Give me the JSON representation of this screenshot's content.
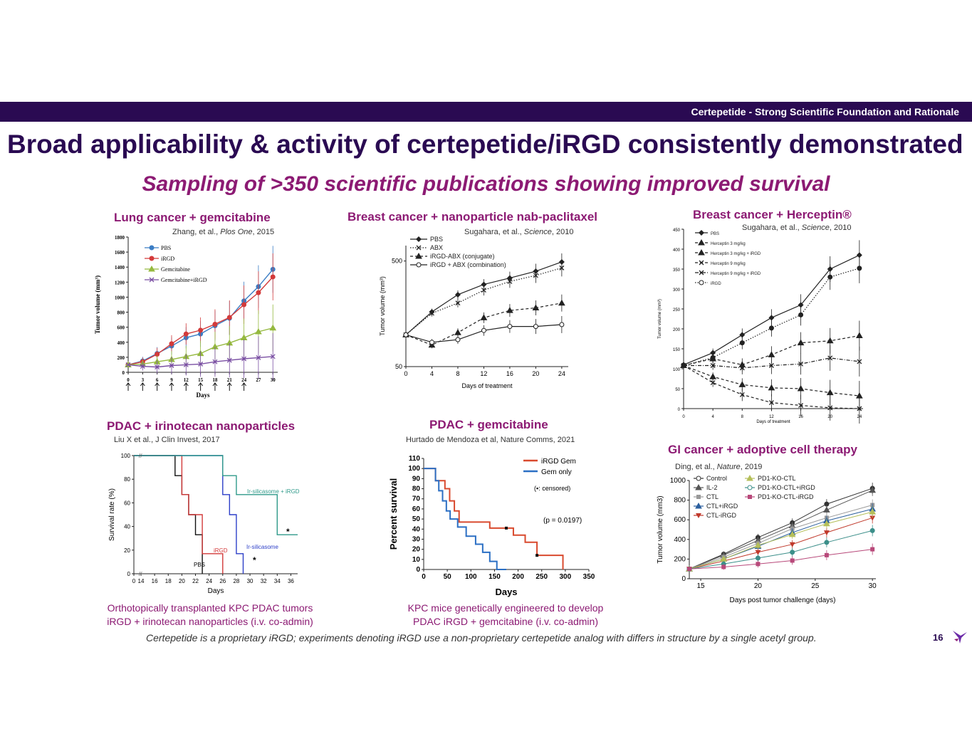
{
  "header": {
    "section": "Certepetide - Strong Scientific Foundation and Rationale"
  },
  "title": "Broad applicability & activity of certepetide/iRGD consistently demonstrated",
  "subtitle": "Sampling of >350 scientific publications showing improved survival",
  "panels": {
    "lung": {
      "title": "Lung cancer + gemcitabine",
      "cite_author": "Zhang, et al., ",
      "cite_journal": "Plos One",
      "cite_year": ", 2015"
    },
    "breast_nab": {
      "title": "Breast cancer + nanoparticle nab-paclitaxel",
      "cite_author": "Sugahara, et al., ",
      "cite_journal": "Science",
      "cite_year": ", 2010"
    },
    "breast_her": {
      "title": "Breast cancer + Herceptin®",
      "cite_author": "Sugahara, et al., ",
      "cite_journal": "Science",
      "cite_year": ", 2010"
    },
    "pdac_iri": {
      "title": "PDAC + irinotecan nanoparticles",
      "cite": "Liu X et al., J Clin Invest, 2017",
      "caption_line1": "Orthotopically transplanted KPC PDAC tumors",
      "caption_line2": "iRGD + irinotecan nanoparticles (i.v. co-admin)"
    },
    "pdac_gem": {
      "title": "PDAC + gemcitabine",
      "cite": "Hurtado de Mendoza et al, Nature Comms, 2021",
      "caption_line1": "KPC mice genetically engineered to develop",
      "caption_line2": "PDAC iRGD + gemcitabine (i.v. co-admin)"
    },
    "gi": {
      "title": "GI cancer + adoptive cell therapy",
      "cite_author": "Ding, et al., ",
      "cite_journal": "Nature",
      "cite_year": ", 2019"
    }
  },
  "footnote": "Certepetide is a proprietary iRGD; experiments denoting iRGD use a non-proprietary certepetide analog with differs in structure by a single acetyl group.",
  "page_number": "16",
  "colors": {
    "brand_dark": "#2a0a52",
    "brand_magenta": "#8c1a73"
  },
  "chart_data": [
    {
      "id": "lung",
      "type": "line",
      "xlabel": "Days",
      "ylabel": "Tumor volume (mm³)",
      "x": [
        0,
        3,
        6,
        9,
        12,
        15,
        18,
        21,
        24,
        27,
        30
      ],
      "xticks": [
        "0",
        "3",
        "6",
        "9",
        "12",
        "15",
        "18",
        "21",
        "24",
        "27",
        "30"
      ],
      "yticks": [
        0,
        200,
        400,
        600,
        800,
        1000,
        1200,
        1400,
        1600,
        1800
      ],
      "ylim": [
        0,
        1800
      ],
      "dosing_days": [
        0,
        3,
        6,
        9,
        12,
        15,
        18,
        21,
        24
      ],
      "series": [
        {
          "name": "PBS",
          "color": "#3b7dc4",
          "marker": "circle",
          "values": [
            100,
            150,
            250,
            350,
            460,
            510,
            620,
            720,
            950,
            1140,
            1370
          ]
        },
        {
          "name": "iRGD",
          "color": "#d33a3a",
          "marker": "circle",
          "values": [
            100,
            140,
            240,
            380,
            510,
            560,
            640,
            730,
            900,
            1060,
            1270
          ]
        },
        {
          "name": "Gemcitabine",
          "color": "#95b93f",
          "marker": "triangle",
          "values": [
            100,
            110,
            140,
            170,
            210,
            250,
            340,
            390,
            460,
            540,
            590
          ]
        },
        {
          "name": "Gemcitabine+iRGD",
          "color": "#7a4fa3",
          "marker": "x",
          "values": [
            100,
            80,
            70,
            90,
            100,
            110,
            140,
            160,
            180,
            195,
            210
          ]
        }
      ]
    },
    {
      "id": "breast_nab",
      "type": "line",
      "scale": "log",
      "xlabel": "Days of treatment",
      "ylabel": "Tumor volume (mm³)",
      "x": [
        0,
        4,
        8,
        12,
        16,
        20,
        24
      ],
      "xticks": [
        "0",
        "4",
        "8",
        "12",
        "16",
        "20",
        "24"
      ],
      "yticks": [
        50,
        500
      ],
      "ylim": [
        50,
        700
      ],
      "series": [
        {
          "name": "PBS",
          "style": "solid",
          "marker": "diamond",
          "values": [
            100,
            165,
            240,
            300,
            345,
            400,
            490
          ]
        },
        {
          "name": "ABX",
          "style": "dotted",
          "marker": "x",
          "values": [
            100,
            160,
            200,
            265,
            320,
            365,
            430
          ]
        },
        {
          "name": "iRGD-ABX (conjugate)",
          "style": "dashed",
          "marker": "triangle",
          "values": [
            100,
            80,
            105,
            145,
            170,
            180,
            200
          ]
        },
        {
          "name": "iRGD + ABX (combination)",
          "style": "solid",
          "marker": "circle",
          "values": [
            100,
            85,
            90,
            110,
            120,
            120,
            125
          ]
        }
      ]
    },
    {
      "id": "breast_her",
      "type": "line",
      "xlabel": "Days of treatment",
      "ylabel": "Tumor volume (mm³)",
      "x": [
        0,
        4,
        8,
        12,
        16,
        20,
        24
      ],
      "xticks": [
        "0",
        "4",
        "8",
        "12",
        "16",
        "20",
        "24"
      ],
      "yticks": [
        0,
        50,
        100,
        150,
        200,
        250,
        300,
        350,
        400,
        450
      ],
      "ylim": [
        0,
        450
      ],
      "series": [
        {
          "name": "PBS",
          "style": "solid",
          "marker": "diamond",
          "values": [
            110,
            140,
            185,
            228,
            260,
            350,
            385
          ]
        },
        {
          "name": "Herceptin 3 mg/kg",
          "style": "dashed",
          "marker": "triangle",
          "values": [
            108,
            125,
            110,
            135,
            165,
            170,
            183
          ]
        },
        {
          "name": "Herceptin 3 mg/kg + iRGD",
          "style": "dashed",
          "marker": "triangle",
          "values": [
            108,
            80,
            60,
            52,
            50,
            40,
            32
          ]
        },
        {
          "name": "Herceptin 9 mg/kg",
          "style": "dashed",
          "marker": "x",
          "values": [
            108,
            65,
            35,
            15,
            8,
            2,
            0
          ]
        },
        {
          "name": "Herceptin 9 mg/kg + iRGD",
          "style": "dashdot",
          "marker": "x",
          "values": [
            108,
            108,
            102,
            108,
            112,
            127,
            118
          ]
        },
        {
          "name": "iRGD",
          "style": "dotted",
          "marker": "circle",
          "values": [
            108,
            128,
            165,
            202,
            235,
            330,
            352
          ]
        }
      ]
    },
    {
      "id": "pdac_iri",
      "type": "line",
      "step": true,
      "xlabel": "Days",
      "ylabel": "Survival rate (%)",
      "xticks": [
        "0",
        "14",
        "16",
        "18",
        "20",
        "22",
        "24",
        "26",
        "28",
        "30",
        "32",
        "34",
        "36"
      ],
      "xtick_values": [
        0,
        14,
        16,
        18,
        20,
        22,
        24,
        26,
        28,
        30,
        32,
        34,
        36
      ],
      "yticks": [
        0,
        20,
        40,
        60,
        80,
        100
      ],
      "ylim": [
        0,
        100
      ],
      "series": [
        {
          "name": "PBS",
          "color": "#111111",
          "points": [
            [
              0,
              100
            ],
            [
              19,
              100
            ],
            [
              19,
              83
            ],
            [
              20,
              83
            ],
            [
              20,
              67
            ],
            [
              21,
              67
            ],
            [
              21,
              50
            ],
            [
              22,
              50
            ],
            [
              22,
              33
            ],
            [
              23,
              33
            ],
            [
              23,
              0
            ]
          ]
        },
        {
          "name": "iRGD",
          "color": "#d33a3a",
          "points": [
            [
              0,
              100
            ],
            [
              20,
              100
            ],
            [
              20,
              67
            ],
            [
              21,
              67
            ],
            [
              21,
              50
            ],
            [
              23,
              50
            ],
            [
              23,
              17
            ],
            [
              26,
              17
            ],
            [
              26,
              0
            ]
          ]
        },
        {
          "name": "Ir-silicasome",
          "color": "#2d3fc8",
          "points": [
            [
              0,
              100
            ],
            [
              26,
              100
            ],
            [
              26,
              67
            ],
            [
              27,
              67
            ],
            [
              27,
              50
            ],
            [
              28,
              50
            ],
            [
              28,
              17
            ],
            [
              29,
              17
            ],
            [
              29,
              0
            ]
          ]
        },
        {
          "name": "Ir-silicasome + iRGD",
          "color": "#2f9a8a",
          "points": [
            [
              0,
              100
            ],
            [
              26,
              100
            ],
            [
              26,
              83
            ],
            [
              28,
              83
            ],
            [
              28,
              67
            ],
            [
              34,
              67
            ],
            [
              34,
              33
            ],
            [
              37,
              33
            ]
          ]
        }
      ],
      "significance_marker": "*"
    },
    {
      "id": "pdac_gem",
      "type": "line",
      "step": true,
      "xlabel": "Days",
      "ylabel": "Percent survival",
      "xticks": [
        "0",
        "50",
        "100",
        "150",
        "200",
        "250",
        "300",
        "350"
      ],
      "xtick_values": [
        0,
        50,
        100,
        150,
        200,
        250,
        300,
        350
      ],
      "yticks": [
        0,
        10,
        20,
        30,
        40,
        50,
        60,
        70,
        80,
        90,
        100,
        110
      ],
      "ylim": [
        0,
        110
      ],
      "annotation": "(p = 0.0197)",
      "censored_note": "(▪: censored)",
      "series": [
        {
          "name": "iRGD  Gem",
          "color": "#d94a2e",
          "points": [
            [
              0,
              100
            ],
            [
              25,
              100
            ],
            [
              25,
              88
            ],
            [
              45,
              88
            ],
            [
              45,
              80
            ],
            [
              55,
              80
            ],
            [
              55,
              68
            ],
            [
              65,
              68
            ],
            [
              65,
              58
            ],
            [
              75,
              58
            ],
            [
              75,
              47
            ],
            [
              140,
              47
            ],
            [
              140,
              41
            ],
            [
              190,
              41
            ],
            [
              190,
              34
            ],
            [
              215,
              34
            ],
            [
              215,
              27
            ],
            [
              240,
              27
            ],
            [
              240,
              14
            ],
            [
              295,
              14
            ],
            [
              295,
              0
            ]
          ],
          "censored": [
            [
              175,
              41
            ],
            [
              240,
              14
            ]
          ]
        },
        {
          "name": "Gem only",
          "color": "#2b6fc4",
          "points": [
            [
              0,
              100
            ],
            [
              25,
              100
            ],
            [
              25,
              88
            ],
            [
              32,
              88
            ],
            [
              32,
              78
            ],
            [
              40,
              78
            ],
            [
              40,
              68
            ],
            [
              48,
              68
            ],
            [
              48,
              58
            ],
            [
              56,
              58
            ],
            [
              56,
              50
            ],
            [
              72,
              50
            ],
            [
              72,
              42
            ],
            [
              90,
              42
            ],
            [
              90,
              33
            ],
            [
              110,
              33
            ],
            [
              110,
              25
            ],
            [
              125,
              25
            ],
            [
              125,
              17
            ],
            [
              140,
              17
            ],
            [
              140,
              8
            ],
            [
              155,
              8
            ],
            [
              155,
              0
            ],
            [
              175,
              0
            ]
          ],
          "censored": []
        }
      ]
    },
    {
      "id": "gi",
      "type": "line",
      "xlabel": "Days post tumor challenge (days)",
      "ylabel": "Tumor volume (mm3)",
      "x": [
        14,
        17,
        20,
        23,
        26,
        30
      ],
      "xticks": [
        "15",
        "20",
        "25",
        "30"
      ],
      "xtick_values": [
        15,
        20,
        25,
        30
      ],
      "yticks": [
        0,
        200,
        400,
        600,
        800,
        1000
      ],
      "ylim": [
        0,
        1000
      ],
      "series": [
        {
          "name": "Control",
          "color": "#333333",
          "marker": "circle",
          "values": [
            100,
            250,
            420,
            570,
            760,
            920
          ]
        },
        {
          "name": "IL-2",
          "color": "#555555",
          "marker": "triangle",
          "values": [
            100,
            240,
            390,
            540,
            700,
            900
          ]
        },
        {
          "name": "CTL",
          "color": "#999999",
          "marker": "square",
          "values": [
            100,
            220,
            360,
            510,
            620,
            750
          ]
        },
        {
          "name": "CTL+iRGD",
          "color": "#2b5f9e",
          "marker": "triangle",
          "values": [
            100,
            200,
            330,
            470,
            590,
            710
          ]
        },
        {
          "name": "CTL-iRGD",
          "color": "#c0392b",
          "marker": "triangle-down",
          "values": [
            100,
            180,
            270,
            350,
            470,
            620
          ]
        },
        {
          "name": "PD1-KO-CTL",
          "color": "#b5bf5a",
          "marker": "triangle",
          "values": [
            100,
            200,
            340,
            450,
            560,
            680
          ]
        },
        {
          "name": "PD1-KO-CTL+iRGD",
          "color": "#3c8f8a",
          "marker": "circle",
          "values": [
            100,
            150,
            210,
            270,
            370,
            490
          ]
        },
        {
          "name": "PD1-KO-CTL-iRGD",
          "color": "#b8497a",
          "marker": "square",
          "values": [
            100,
            120,
            150,
            185,
            240,
            300
          ]
        }
      ]
    }
  ]
}
